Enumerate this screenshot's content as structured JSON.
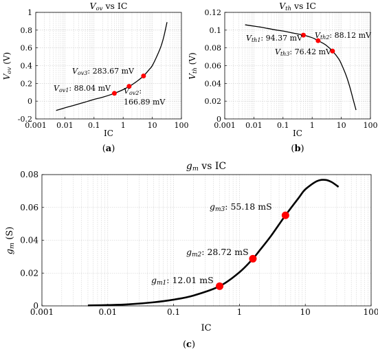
{
  "chart_data": [
    {
      "id": "a",
      "type": "line",
      "subcaption": "(a)",
      "title": "V_ov vs IC",
      "xlabel": "IC",
      "ylabel": "V_ov (V)",
      "x_scale": "log",
      "xlim": [
        0.001,
        100
      ],
      "ylim": [
        -0.2,
        1.0
      ],
      "x_ticks": [
        0.001,
        0.01,
        0.1,
        1,
        10,
        100
      ],
      "x_tick_labels": [
        "0.001",
        "0.01",
        "0.1",
        "1",
        "10",
        "100"
      ],
      "y_ticks": [
        -0.2,
        0,
        0.2,
        0.4,
        0.6,
        0.8,
        1
      ],
      "y_tick_labels": [
        "-0.2",
        "0",
        "0.2",
        "0.4",
        "0.6",
        "0.8",
        "1"
      ],
      "grid": true,
      "series": [
        {
          "x": [
            0.005,
            0.01,
            0.02,
            0.05,
            0.1,
            0.2,
            0.5,
            1,
            1.6,
            2,
            3,
            5,
            8,
            10,
            15,
            20,
            25,
            32
          ],
          "y": [
            -0.105,
            -0.075,
            -0.048,
            -0.01,
            0.02,
            0.045,
            0.088,
            0.13,
            0.167,
            0.185,
            0.225,
            0.284,
            0.36,
            0.4,
            0.52,
            0.62,
            0.73,
            0.89
          ]
        }
      ],
      "markers": [
        {
          "x": 0.5,
          "y": 0.08804,
          "label": "V_ov1: 88.04 mV"
        },
        {
          "x": 1.6,
          "y": 0.16689,
          "label": "V_ov2: 166.89 mV"
        },
        {
          "x": 5,
          "y": 0.28367,
          "label": "V_ov3: 283.67 mV"
        }
      ]
    },
    {
      "id": "b",
      "type": "line",
      "subcaption": "(b)",
      "title": "V_th vs IC",
      "xlabel": "IC",
      "ylabel": "V_th (V)",
      "x_scale": "log",
      "xlim": [
        0.001,
        100
      ],
      "ylim": [
        0,
        0.12
      ],
      "x_ticks": [
        0.001,
        0.01,
        0.1,
        1,
        10,
        100
      ],
      "x_tick_labels": [
        "0.001",
        "0.01",
        "0.1",
        "1",
        "10",
        "100"
      ],
      "y_ticks": [
        0,
        0.02,
        0.04,
        0.06,
        0.08,
        0.1,
        0.12
      ],
      "y_tick_labels": [
        "0",
        "0.02",
        "0.04",
        "0.06",
        "0.08",
        "0.1",
        "0.12"
      ],
      "grid": true,
      "series": [
        {
          "x": [
            0.005,
            0.01,
            0.02,
            0.05,
            0.1,
            0.2,
            0.5,
            1,
            1.6,
            2,
            3,
            5,
            8,
            10,
            15,
            20,
            25,
            32
          ],
          "y": [
            0.106,
            0.1045,
            0.103,
            0.1005,
            0.099,
            0.097,
            0.0944,
            0.0915,
            0.0881,
            0.0865,
            0.083,
            0.0764,
            0.068,
            0.062,
            0.048,
            0.035,
            0.023,
            0.01
          ]
        }
      ],
      "markers": [
        {
          "x": 0.5,
          "y": 0.09437,
          "label": "V_th1: 94.37 mV"
        },
        {
          "x": 1.6,
          "y": 0.08812,
          "label": "V_th2: 88.12 mV"
        },
        {
          "x": 5,
          "y": 0.07642,
          "label": "V_th3: 76.42 mV"
        }
      ]
    },
    {
      "id": "c",
      "type": "line",
      "subcaption": "(c)",
      "title": "g_m vs IC",
      "xlabel": "IC",
      "ylabel": "g_m (S)",
      "x_scale": "log",
      "xlim": [
        0.001,
        100
      ],
      "ylim": [
        0,
        0.08
      ],
      "x_ticks": [
        0.001,
        0.01,
        0.1,
        1,
        10,
        100
      ],
      "x_tick_labels": [
        "0.001",
        "0.01",
        "0.1",
        "1",
        "10",
        "100"
      ],
      "y_ticks": [
        0,
        0.02,
        0.04,
        0.06,
        0.08
      ],
      "y_tick_labels": [
        "0",
        "0.02",
        "0.04",
        "0.06",
        "0.08"
      ],
      "grid": true,
      "series": [
        {
          "x": [
            0.005,
            0.01,
            0.02,
            0.05,
            0.1,
            0.2,
            0.5,
            1,
            1.6,
            2,
            3,
            5,
            8,
            10,
            15,
            20,
            25,
            32
          ],
          "y": [
            0.0003,
            0.0005,
            0.0009,
            0.0022,
            0.0038,
            0.0063,
            0.01201,
            0.0205,
            0.02872,
            0.0335,
            0.0425,
            0.05518,
            0.066,
            0.071,
            0.076,
            0.0768,
            0.0755,
            0.0725
          ]
        }
      ],
      "markers": [
        {
          "x": 0.5,
          "y": 0.01201,
          "label": "g_m1: 12.01 mS"
        },
        {
          "x": 1.6,
          "y": 0.02872,
          "label": "g_m2: 28.72 mS"
        },
        {
          "x": 5,
          "y": 0.05518,
          "label": "g_m3: 55.18 mS"
        }
      ]
    }
  ],
  "text": {
    "a": {
      "title_main": "V",
      "title_sub": "ov",
      "title_rest": " vs IC",
      "ylabel_main": "V",
      "ylabel_sub": "ov",
      "ylabel_rest": " (V)",
      "m1_main": "V",
      "m1_sub": "ov1",
      "m1_rest": ": 88.04 mV",
      "m2_main": "V",
      "m2_sub": "ov2",
      "m2_rest": ":",
      "m2_line2": "166.89 mV",
      "m3_main": "V",
      "m3_sub": "ov3",
      "m3_rest": ": 283.67 mV"
    },
    "b": {
      "title_main": "V",
      "title_sub": "th",
      "title_rest": " vs IC",
      "ylabel_main": "V",
      "ylabel_sub": "th",
      "ylabel_rest": " (V)",
      "m1_main": "V",
      "m1_sub": "th1",
      "m1_rest": ": 94.37 mV",
      "m2_main": "V",
      "m2_sub": "th2",
      "m2_rest": ": 88.12 mV",
      "m3_main": "V",
      "m3_sub": "th3",
      "m3_rest": ": 76.42 mV"
    },
    "c": {
      "title_main": "g",
      "title_sub": "m",
      "title_rest": " vs IC",
      "ylabel_main": "g",
      "ylabel_sub": "m",
      "ylabel_rest": " (S)",
      "m1_main": "g",
      "m1_sub": "m1",
      "m1_rest": ": 12.01 mS",
      "m2_main": "g",
      "m2_sub": "m2",
      "m2_rest": ": 28.72 mS",
      "m3_main": "g",
      "m3_sub": "m3",
      "m3_rest": ": 55.18 mS"
    }
  },
  "colors": {
    "curve": "#000000",
    "marker": "#ff0000",
    "grid": "#c8c8c8",
    "axis": "#000000"
  }
}
